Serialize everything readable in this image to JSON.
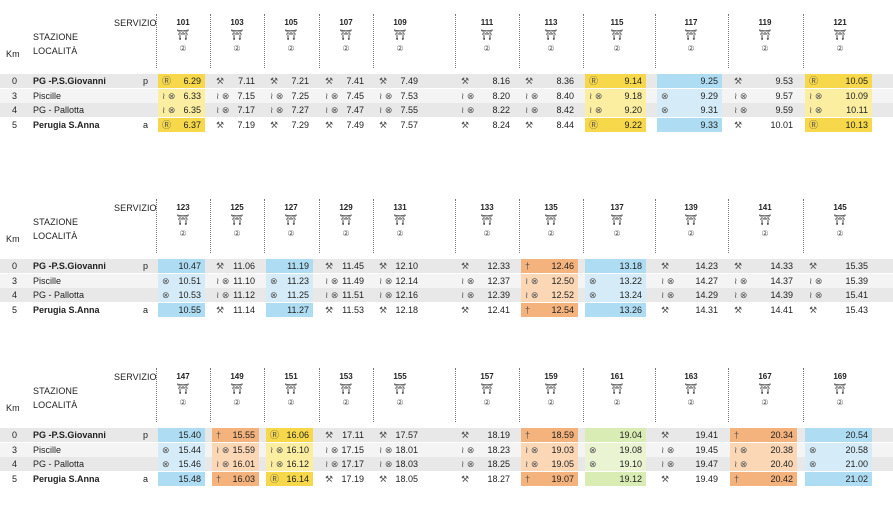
{
  "header": {
    "servizio": "SERVIZIO",
    "stazione": "STAZIONE",
    "localita": "LOCALITÀ",
    "km": "Km"
  },
  "stations": [
    {
      "km": "0",
      "name": "PG -P.S.Giovanni",
      "flag": "p",
      "bold": true
    },
    {
      "km": "3",
      "name": "Piscille",
      "flag": "",
      "bold": false
    },
    {
      "km": "4",
      "name": "PG - Pallotta",
      "flag": "",
      "bold": false
    },
    {
      "km": "5",
      "name": "Perugia S.Anna",
      "flag": "a",
      "bold": true
    }
  ],
  "icon_train": "⛩",
  "icon_circle": "②",
  "colors": {
    "yellow": "#f7d84a",
    "lightyellow": "#fbeea0",
    "blue": "#aedcf3",
    "lightblue": "#d5ecf8",
    "orange": "#f4b27c",
    "lightorange": "#fbd7b6",
    "green": "#d9ecb4",
    "lightgreen": "#eaf4d2",
    "grey": "#e8e8e8"
  },
  "blocks": [
    {
      "trains": [
        {
          "n": "101",
          "color": "yellow",
          "sym": "Ⓡ",
          "times": [
            "6.29",
            "6.33",
            "6.35",
            "6.37"
          ]
        },
        {
          "n": "103",
          "color": "none",
          "sym": "⚒",
          "times": [
            "7.11",
            "7.15",
            "7.17",
            "7.19"
          ]
        },
        {
          "n": "105",
          "color": "none",
          "sym": "⚒",
          "times": [
            "7.21",
            "7.25",
            "7.27",
            "7.29"
          ]
        },
        {
          "n": "107",
          "color": "none",
          "sym": "⚒",
          "times": [
            "7.41",
            "7.45",
            "7.47",
            "7.49"
          ]
        },
        {
          "n": "109",
          "color": "none",
          "sym": "⚒",
          "times": [
            "7.49",
            "7.53",
            "7.55",
            "7.57"
          ]
        },
        {
          "n": "111",
          "color": "none",
          "sym": "⚒",
          "times": [
            "8.16",
            "8.20",
            "8.22",
            "8.24"
          ]
        },
        {
          "n": "113",
          "color": "none",
          "sym": "⚒",
          "times": [
            "8.36",
            "8.40",
            "8.42",
            "8.44"
          ]
        },
        {
          "n": "115",
          "color": "yellow",
          "sym": "Ⓡ",
          "times": [
            "9.14",
            "9.18",
            "9.20",
            "9.22"
          ]
        },
        {
          "n": "117",
          "color": "blue",
          "sym": "",
          "times": [
            "9.25",
            "9.29",
            "9.31",
            "9.33"
          ]
        },
        {
          "n": "119",
          "color": "none",
          "sym": "⚒",
          "times": [
            "9.53",
            "9.57",
            "9.59",
            "10.01"
          ]
        },
        {
          "n": "121",
          "color": "yellow",
          "sym": "Ⓡ",
          "times": [
            "10.05",
            "10.09",
            "10.11",
            "10.13"
          ]
        }
      ]
    },
    {
      "trains": [
        {
          "n": "123",
          "color": "blue",
          "sym": "",
          "times": [
            "10.47",
            "10.51",
            "10.53",
            "10.55"
          ]
        },
        {
          "n": "125",
          "color": "none",
          "sym": "⚒",
          "times": [
            "11.06",
            "11.10",
            "11.12",
            "11.14"
          ]
        },
        {
          "n": "127",
          "color": "blue",
          "sym": "",
          "times": [
            "11.19",
            "11.23",
            "11.25",
            "11.27"
          ]
        },
        {
          "n": "129",
          "color": "none",
          "sym": "⚒",
          "times": [
            "11.45",
            "11.49",
            "11.51",
            "11.53"
          ]
        },
        {
          "n": "131",
          "color": "none",
          "sym": "⚒",
          "times": [
            "12.10",
            "12.14",
            "12.16",
            "12.18"
          ]
        },
        {
          "n": "133",
          "color": "none",
          "sym": "⚒",
          "times": [
            "12.33",
            "12.37",
            "12.39",
            "12.41"
          ]
        },
        {
          "n": "135",
          "color": "orange",
          "sym": "†",
          "times": [
            "12.46",
            "12.50",
            "12.52",
            "12.54"
          ]
        },
        {
          "n": "137",
          "color": "blue",
          "sym": "",
          "times": [
            "13.18",
            "13.22",
            "13.24",
            "13.26"
          ]
        },
        {
          "n": "139",
          "color": "none",
          "sym": "⚒",
          "times": [
            "14.23",
            "14.27",
            "14.29",
            "14.31"
          ]
        },
        {
          "n": "141",
          "color": "none",
          "sym": "⚒",
          "times": [
            "14.33",
            "14.37",
            "14.39",
            "14.41"
          ]
        },
        {
          "n": "145",
          "color": "none",
          "sym": "⚒",
          "times": [
            "15.35",
            "15.39",
            "15.41",
            "15.43"
          ]
        }
      ]
    },
    {
      "trains": [
        {
          "n": "147",
          "color": "blue",
          "sym": "",
          "times": [
            "15.40",
            "15.44",
            "15.46",
            "15.48"
          ]
        },
        {
          "n": "149",
          "color": "orange",
          "sym": "†",
          "times": [
            "15.55",
            "15.59",
            "16.01",
            "16.03"
          ]
        },
        {
          "n": "151",
          "color": "yellow",
          "sym": "Ⓡ",
          "times": [
            "16.06",
            "16.10",
            "16.12",
            "16.14"
          ]
        },
        {
          "n": "153",
          "color": "none",
          "sym": "⚒",
          "times": [
            "17.11",
            "17.15",
            "17.17",
            "17.19"
          ]
        },
        {
          "n": "155",
          "color": "none",
          "sym": "⚒",
          "times": [
            "17.57",
            "18.01",
            "18.03",
            "18.05"
          ]
        },
        {
          "n": "157",
          "color": "none",
          "sym": "⚒",
          "times": [
            "18.19",
            "18.23",
            "18.25",
            "18.27"
          ]
        },
        {
          "n": "159",
          "color": "orange",
          "sym": "†",
          "times": [
            "18.59",
            "19.03",
            "19.05",
            "19.07"
          ]
        },
        {
          "n": "161",
          "color": "green",
          "sym": "",
          "times": [
            "19.04",
            "19.08",
            "19.10",
            "19.12"
          ]
        },
        {
          "n": "163",
          "color": "none",
          "sym": "⚒",
          "times": [
            "19.41",
            "19.45",
            "19.47",
            "19.49"
          ]
        },
        {
          "n": "167",
          "color": "orange",
          "sym": "†",
          "times": [
            "20.34",
            "20.38",
            "20.40",
            "20.42"
          ]
        },
        {
          "n": "169",
          "color": "blue",
          "sym": "",
          "times": [
            "20.54",
            "20.58",
            "21.00",
            "21.02"
          ]
        }
      ]
    }
  ]
}
